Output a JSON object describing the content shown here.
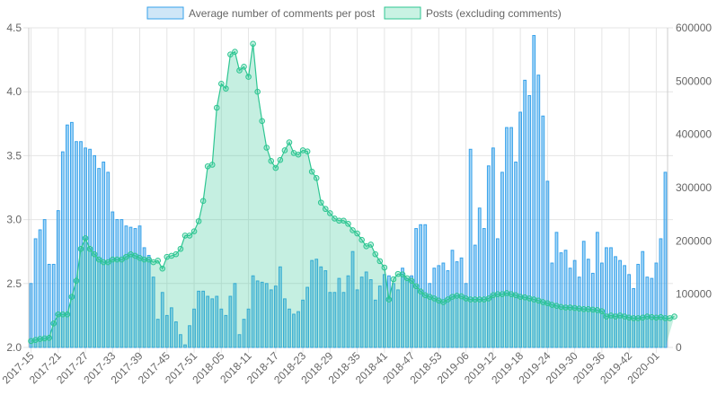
{
  "chart_data": {
    "type": "bar",
    "legend": {
      "placement": "top",
      "items": [
        {
          "label": "Average number of comments per post",
          "fill": "#cfe6f7",
          "stroke": "#36a2eb"
        },
        {
          "label": "Posts (excluding comments)",
          "fill": "#c9f2e3",
          "stroke": "#2ec692"
        }
      ]
    },
    "grid": true,
    "x_tick_labels": [
      "2017-15",
      "2017-21",
      "2017-27",
      "2017-33",
      "2017-39",
      "2017-45",
      "2017-51",
      "2018-05",
      "2018-11",
      "2018-17",
      "2018-23",
      "2018-29",
      "2018-35",
      "2018-41",
      "2018-47",
      "2018-53",
      "2019-06",
      "2019-12",
      "2019-18",
      "2019-24",
      "2019-30",
      "2019-36",
      "2019-42",
      "2020-01"
    ],
    "y_left": {
      "min": 2.0,
      "max": 4.5,
      "ticks": [
        "2.0",
        "2.5",
        "3.0",
        "3.5",
        "4.0",
        "4.5"
      ]
    },
    "y_right": {
      "min": 0,
      "max": 600000,
      "ticks": [
        "0",
        "100000",
        "200000",
        "300000",
        "400000",
        "500000",
        "600000"
      ]
    },
    "series": [
      {
        "name": "Average number of comments per post",
        "type": "bar",
        "axis": "left",
        "color": "#36a2eb",
        "values": [
          2.5,
          2.85,
          2.92,
          3.0,
          2.65,
          2.65,
          3.07,
          3.53,
          3.74,
          3.76,
          3.61,
          3.61,
          3.56,
          3.55,
          3.5,
          3.4,
          3.45,
          3.37,
          3.06,
          3.0,
          3.0,
          2.95,
          2.94,
          2.93,
          2.95,
          2.78,
          2.72,
          2.55,
          2.22,
          2.43,
          2.25,
          2.31,
          2.2,
          2.1,
          2.02,
          2.17,
          2.3,
          2.44,
          2.44,
          2.4,
          2.38,
          2.4,
          2.3,
          2.25,
          2.4,
          2.5,
          2.1,
          2.22,
          2.3,
          2.56,
          2.52,
          2.51,
          2.5,
          2.45,
          2.48,
          2.63,
          2.38,
          2.3,
          2.26,
          2.28,
          2.37,
          2.47,
          2.68,
          2.69,
          2.63,
          2.6,
          2.43,
          2.43,
          2.54,
          2.43,
          2.56,
          2.75,
          2.45,
          2.55,
          2.59,
          2.53,
          2.37,
          2.48,
          2.57,
          2.56,
          2.5,
          2.45,
          2.62,
          2.54,
          2.56,
          2.93,
          2.96,
          2.96,
          2.5,
          2.62,
          2.64,
          2.66,
          2.6,
          2.76,
          2.67,
          2.7,
          2.5,
          3.55,
          2.8,
          3.09,
          2.93,
          3.42,
          3.56,
          2.85,
          3.37,
          3.72,
          3.72,
          3.45,
          3.84,
          4.09,
          3.97,
          4.44,
          4.13,
          3.81,
          3.3,
          2.66,
          2.9,
          2.74,
          2.76,
          2.62,
          2.68,
          2.55,
          2.83,
          2.69,
          2.58,
          2.9,
          2.66,
          2.78,
          2.78,
          2.71,
          2.68,
          2.64,
          2.57,
          2.46,
          2.65,
          2.75,
          2.55,
          2.54,
          2.66,
          2.85,
          3.37
        ]
      },
      {
        "name": "Posts (excluding comments)",
        "type": "area",
        "axis": "right",
        "color": "#2ec692",
        "values": [
          12000,
          14000,
          16000,
          17000,
          18000,
          45000,
          62000,
          62000,
          62000,
          95000,
          125000,
          185000,
          205000,
          185000,
          175000,
          165000,
          160000,
          160000,
          165000,
          165000,
          165000,
          170000,
          175000,
          172000,
          168000,
          165000,
          165000,
          160000,
          163000,
          148000,
          170000,
          172000,
          175000,
          185000,
          210000,
          210000,
          218000,
          237000,
          275000,
          340000,
          343000,
          450000,
          495000,
          486000,
          550000,
          555000,
          520000,
          527000,
          508000,
          570000,
          480000,
          425000,
          375000,
          350000,
          337000,
          352000,
          370000,
          385000,
          365000,
          362000,
          370000,
          368000,
          330000,
          318000,
          272000,
          260000,
          252000,
          242000,
          238000,
          238000,
          232000,
          220000,
          214000,
          202000,
          190000,
          193000,
          175000,
          162000,
          150000,
          90000,
          128000,
          138000,
          137000,
          130000,
          125000,
          115000,
          105000,
          98000,
          95000,
          92000,
          88000,
          85000,
          90000,
          95000,
          97000,
          96000,
          92000,
          90000,
          90000,
          90000,
          90000,
          92000,
          98000,
          100000,
          100000,
          102000,
          100000,
          98000,
          95000,
          94000,
          92000,
          90000,
          88000,
          85000,
          83000,
          80000,
          78000,
          76000,
          75000,
          75000,
          74000,
          73000,
          72000,
          72000,
          71000,
          70000,
          68000,
          58000,
          60000,
          58000,
          60000,
          58000,
          56000,
          55000,
          55000,
          56000,
          58000,
          57000,
          56000,
          57000,
          55000,
          55000,
          58000
        ]
      }
    ]
  }
}
